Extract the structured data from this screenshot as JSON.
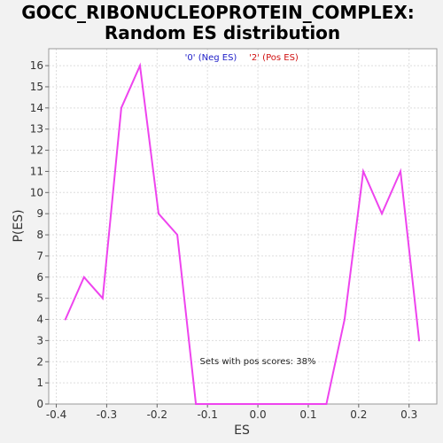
{
  "chart_data": {
    "type": "line",
    "title": "GOCC_RIBONUCLEOPROTEIN_COMPLEX:",
    "subtitle": "Random ES distribution",
    "xlabel": "ES",
    "ylabel": "P(ES)",
    "xlim": [
      -0.415,
      0.355
    ],
    "ylim": [
      0,
      16.8
    ],
    "x_ticks": [
      -0.4,
      -0.3,
      -0.2,
      -0.1,
      0.0,
      0.1,
      0.2,
      0.3
    ],
    "x_tick_labels": [
      "-0.4",
      "-0.3",
      "-0.2",
      "-0.1",
      "0.0",
      "0.1",
      "0.2",
      "0.3"
    ],
    "y_ticks": [
      0,
      1,
      2,
      3,
      4,
      5,
      6,
      7,
      8,
      9,
      10,
      11,
      12,
      13,
      14,
      15,
      16
    ],
    "y_tick_labels": [
      "0",
      "1",
      "2",
      "3",
      "4",
      "5",
      "6",
      "7",
      "8",
      "9",
      "10",
      "11",
      "12",
      "13",
      "14",
      "15",
      "16"
    ],
    "grid": true,
    "legend": [
      {
        "label": "'0' (Neg ES)",
        "color": "#2020c8"
      },
      {
        "label": "'2' (Pos ES)",
        "color": "#d01010"
      }
    ],
    "annotation": "Sets with pos scores: 38%",
    "series": [
      {
        "color": "#ee44ee",
        "x": [
          -0.382,
          -0.345,
          -0.308,
          -0.271,
          -0.234,
          -0.197,
          -0.16,
          -0.123,
          0.136,
          0.172,
          0.209,
          0.246,
          0.283,
          0.32
        ],
        "y": [
          4,
          6,
          5,
          14,
          16,
          9,
          8,
          0,
          0,
          4,
          11,
          9,
          11,
          3
        ]
      }
    ]
  }
}
